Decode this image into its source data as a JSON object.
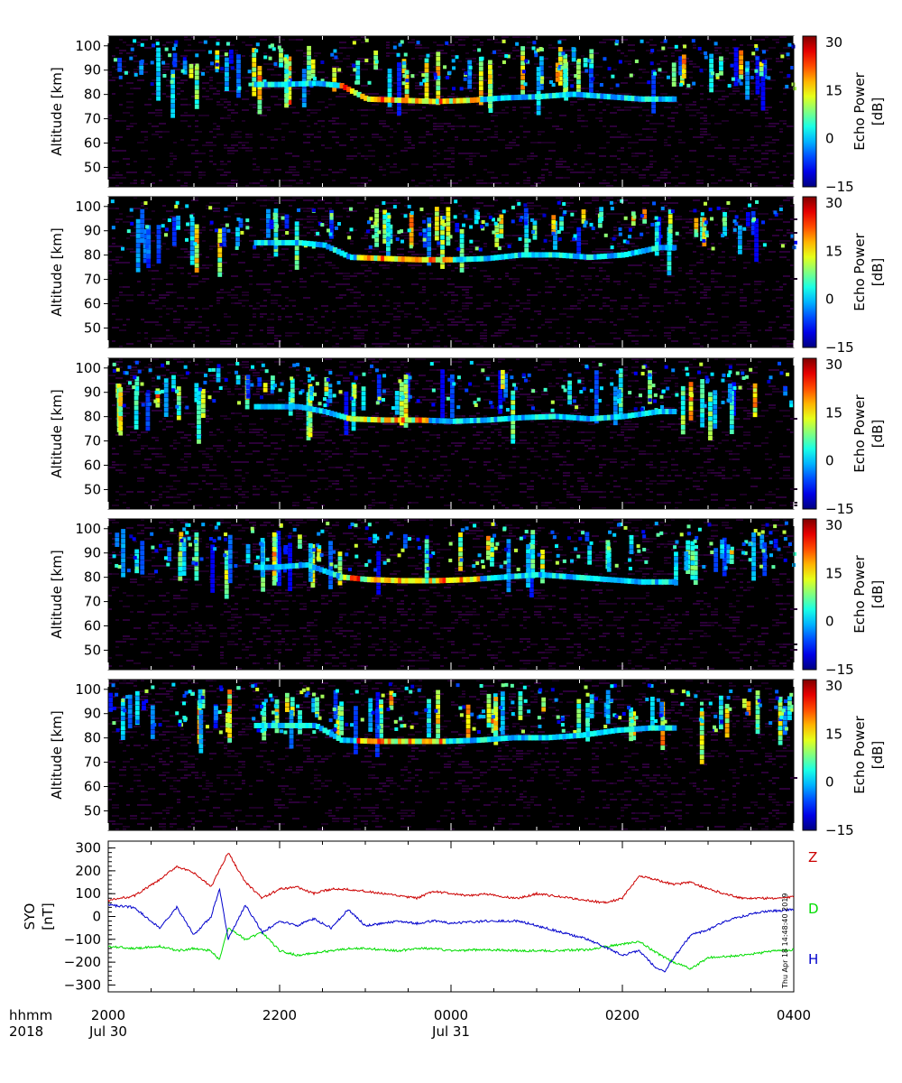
{
  "chart_data": [
    {
      "type": "heatmap",
      "ylabel": "Altitude [km]",
      "yticks": [
        "50",
        "60",
        "70",
        "80",
        "90",
        "100"
      ],
      "ylim": [
        42,
        104
      ],
      "colorbar": {
        "label_line1": "Echo Power",
        "label_line2": "[dB]",
        "ticks": [
          "30",
          "15",
          "0",
          "−15"
        ],
        "range": [
          -15,
          32
        ]
      },
      "layer": [
        [
          -2,
          84
        ],
        [
          -1.6,
          84.5
        ],
        [
          -1.3,
          83.5
        ],
        [
          -1.0,
          78
        ],
        [
          -0.6,
          77.5
        ],
        [
          -0.2,
          77
        ],
        [
          0.2,
          77.5
        ],
        [
          0.6,
          78.5
        ],
        [
          1.0,
          79
        ],
        [
          1.4,
          80
        ],
        [
          1.8,
          79
        ],
        [
          2.2,
          78
        ]
      ],
      "strong": [
        [
          -1.1,
          77.5
        ],
        [
          -0.7,
          77
        ],
        [
          -0.3,
          77
        ],
        [
          0.1,
          77
        ]
      ]
    },
    {
      "type": "heatmap",
      "ylabel": "Altitude [km]",
      "yticks": [
        "50",
        "60",
        "70",
        "80",
        "90",
        "100"
      ],
      "ylim": [
        42,
        104
      ],
      "colorbar": {
        "label_line1": "Echo Power",
        "label_line2": "[dB]",
        "ticks": [
          "30",
          "15",
          "0",
          "−15"
        ],
        "range": [
          -15,
          32
        ]
      },
      "layer": [
        [
          -1.8,
          85
        ],
        [
          -1.5,
          84
        ],
        [
          -1.2,
          79
        ],
        [
          -0.8,
          78.5
        ],
        [
          -0.4,
          78
        ],
        [
          0.0,
          78
        ],
        [
          0.4,
          78.5
        ],
        [
          0.8,
          80
        ],
        [
          1.2,
          80
        ],
        [
          1.6,
          79
        ],
        [
          2.0,
          80
        ],
        [
          2.4,
          83
        ]
      ],
      "strong": [
        [
          -0.9,
          78.5
        ],
        [
          -0.5,
          78.5
        ],
        [
          -0.2,
          78.5
        ]
      ]
    },
    {
      "type": "heatmap",
      "ylabel": "Altitude [km]",
      "yticks": [
        "50",
        "60",
        "70",
        "80",
        "90",
        "100"
      ],
      "ylim": [
        42,
        104
      ],
      "colorbar": {
        "label_line1": "Echo Power",
        "label_line2": "[dB]",
        "ticks": [
          "30",
          "15",
          "0",
          "−15"
        ],
        "range": [
          -15,
          32
        ]
      },
      "layer": [
        [
          -1.8,
          84
        ],
        [
          -1.5,
          82
        ],
        [
          -1.2,
          79
        ],
        [
          -0.8,
          78.5
        ],
        [
          -0.4,
          78.5
        ],
        [
          0.0,
          78
        ],
        [
          0.4,
          78.5
        ],
        [
          0.8,
          79.5
        ],
        [
          1.2,
          80
        ],
        [
          1.6,
          79
        ],
        [
          2.0,
          80
        ],
        [
          2.4,
          82
        ]
      ],
      "strong": [
        [
          -1.0,
          78
        ],
        [
          -0.8,
          78
        ],
        [
          -0.5,
          78.5
        ]
      ]
    },
    {
      "type": "heatmap",
      "ylabel": "Altitude [km]",
      "yticks": [
        "50",
        "60",
        "70",
        "80",
        "90",
        "100"
      ],
      "ylim": [
        42,
        104
      ],
      "colorbar": {
        "label_line1": "Echo Power",
        "label_line2": "[dB]",
        "ticks": [
          "30",
          "15",
          "0",
          "−15"
        ],
        "range": [
          -15,
          32
        ]
      },
      "layer": [
        [
          -2.1,
          84
        ],
        [
          -1.7,
          85
        ],
        [
          -1.3,
          80
        ],
        [
          -1.0,
          79
        ],
        [
          -0.6,
          78.5
        ],
        [
          -0.2,
          78.5
        ],
        [
          0.2,
          79
        ],
        [
          0.6,
          80
        ],
        [
          1.0,
          81
        ],
        [
          1.4,
          80
        ],
        [
          1.8,
          79
        ],
        [
          2.2,
          78
        ]
      ],
      "strong": [
        [
          -1.1,
          78.5
        ],
        [
          -0.7,
          78.5
        ],
        [
          -0.3,
          78.5
        ],
        [
          0.1,
          78.5
        ]
      ]
    },
    {
      "type": "heatmap",
      "ylabel": "Altitude [km]",
      "yticks": [
        "50",
        "60",
        "70",
        "80",
        "90",
        "100"
      ],
      "ylim": [
        42,
        104
      ],
      "colorbar": {
        "label_line1": "Echo Power",
        "label_line2": "[dB]",
        "ticks": [
          "30",
          "15",
          "0",
          "−15"
        ],
        "range": [
          -15,
          32
        ]
      },
      "layer": [
        [
          -2.0,
          85
        ],
        [
          -1.6,
          85
        ],
        [
          -1.3,
          79
        ],
        [
          -0.9,
          78.5
        ],
        [
          -0.5,
          78.5
        ],
        [
          -0.1,
          78.5
        ],
        [
          0.3,
          79
        ],
        [
          0.7,
          80
        ],
        [
          1.1,
          80
        ],
        [
          1.5,
          81
        ],
        [
          1.9,
          83
        ],
        [
          2.3,
          84
        ]
      ],
      "strong": [
        [
          -0.9,
          78
        ],
        [
          -0.6,
          78
        ],
        [
          -0.3,
          78
        ]
      ]
    },
    {
      "type": "line",
      "ylabel_line1": "SYO",
      "ylabel_line2": "[nT]",
      "yticks": [
        "300",
        "200",
        "100",
        "0",
        "−100",
        "−200",
        "−300"
      ],
      "ylim": [
        -330,
        330
      ],
      "series": [
        {
          "name": "Z",
          "color": "#cc0000",
          "x": [
            -4,
            -3.7,
            -3.4,
            -3.2,
            -3.0,
            -2.8,
            -2.6,
            -2.4,
            -2.2,
            -2.0,
            -1.8,
            -1.6,
            -1.4,
            -1.2,
            -1.0,
            -0.8,
            -0.6,
            -0.4,
            -0.2,
            0,
            0.2,
            0.4,
            0.6,
            0.8,
            1.0,
            1.2,
            1.4,
            1.6,
            1.8,
            2.0,
            2.2,
            2.4,
            2.6,
            2.8,
            3.0,
            3.2,
            3.4,
            3.6,
            3.8,
            4.0
          ],
          "values": [
            70,
            90,
            160,
            220,
            190,
            130,
            280,
            150,
            80,
            120,
            130,
            100,
            120,
            120,
            110,
            100,
            90,
            80,
            110,
            100,
            90,
            100,
            85,
            80,
            100,
            90,
            80,
            70,
            60,
            80,
            180,
            160,
            140,
            150,
            120,
            100,
            80,
            80,
            80,
            85
          ]
        },
        {
          "name": "D",
          "color": "#00dd00",
          "x": [
            -4,
            -3.7,
            -3.4,
            -3.2,
            -3.0,
            -2.8,
            -2.7,
            -2.6,
            -2.4,
            -2.2,
            -2.0,
            -1.8,
            -1.6,
            -1.4,
            -1.2,
            -1.0,
            -0.8,
            -0.6,
            -0.4,
            -0.2,
            0,
            0.4,
            0.8,
            1.2,
            1.6,
            2.0,
            2.2,
            2.4,
            2.6,
            2.8,
            3.0,
            3.4,
            3.8,
            4.0
          ],
          "values": [
            -130,
            -140,
            -130,
            -150,
            -140,
            -150,
            -190,
            -50,
            -100,
            -70,
            -150,
            -170,
            -160,
            -150,
            -140,
            -140,
            -145,
            -150,
            -140,
            -140,
            -150,
            -145,
            -150,
            -150,
            -145,
            -120,
            -110,
            -160,
            -200,
            -230,
            -180,
            -170,
            -150,
            -145
          ]
        },
        {
          "name": "H",
          "color": "#0000cc",
          "x": [
            -4,
            -3.7,
            -3.4,
            -3.2,
            -3.0,
            -2.8,
            -2.7,
            -2.6,
            -2.4,
            -2.2,
            -2.0,
            -1.8,
            -1.6,
            -1.4,
            -1.2,
            -1.0,
            -0.8,
            -0.6,
            -0.4,
            -0.2,
            0,
            0.4,
            0.8,
            1.2,
            1.6,
            2.0,
            2.2,
            2.4,
            2.5,
            2.6,
            2.8,
            3.0,
            3.2,
            3.6,
            4.0
          ],
          "values": [
            50,
            40,
            -50,
            40,
            -80,
            0,
            120,
            -100,
            50,
            -70,
            -20,
            -40,
            -10,
            -50,
            30,
            -40,
            -30,
            -20,
            -30,
            -20,
            -30,
            -20,
            -20,
            -60,
            -100,
            -170,
            -150,
            -230,
            -240,
            -180,
            -80,
            -60,
            -20,
            20,
            30
          ]
        }
      ]
    }
  ],
  "timeaxis": {
    "row_label_top": "hhmm",
    "row_label_bottom": "2018",
    "ticks": [
      {
        "x": -4,
        "time": "2000",
        "date": "Jul 30"
      },
      {
        "x": -2,
        "time": "2200",
        "date": ""
      },
      {
        "x": 0,
        "time": "0000",
        "date": "Jul 31"
      },
      {
        "x": 2,
        "time": "0200",
        "date": ""
      },
      {
        "x": 4,
        "time": "0400",
        "date": ""
      }
    ]
  },
  "timestamp": "Thu Apr 18 14:48:40 2019"
}
